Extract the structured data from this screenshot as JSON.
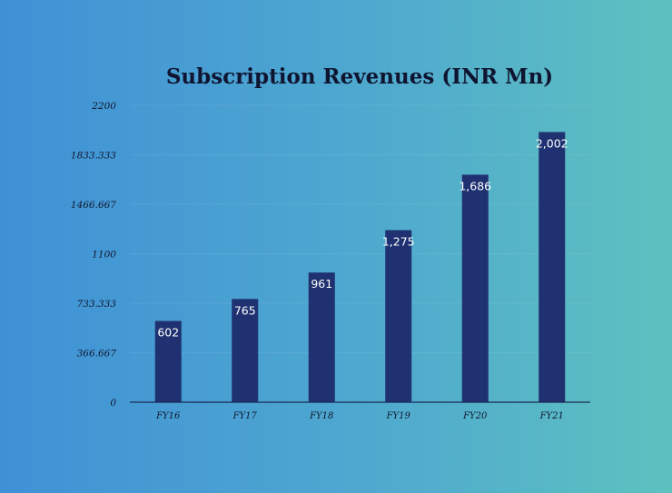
{
  "chart_data": {
    "type": "bar",
    "title": "Subscription Revenues (INR Mn)",
    "xlabel": "",
    "ylabel": "",
    "categories": [
      "FY16",
      "FY17",
      "FY18",
      "FY19",
      "FY20",
      "FY21"
    ],
    "values": [
      602,
      765,
      961,
      1275,
      1686,
      2002
    ],
    "value_labels": [
      "602",
      "765",
      "961",
      "1,275",
      "1,686",
      "2,002"
    ],
    "ylim": [
      0,
      2200
    ],
    "yticks": [
      "0",
      "366.667",
      "733.333",
      "1100",
      "1466.667",
      "1833.333",
      "2200"
    ],
    "grid": false,
    "legend": "none",
    "colors": {
      "bar": "#1f3170",
      "title": "#0f1530",
      "label": "#ffffff"
    }
  }
}
